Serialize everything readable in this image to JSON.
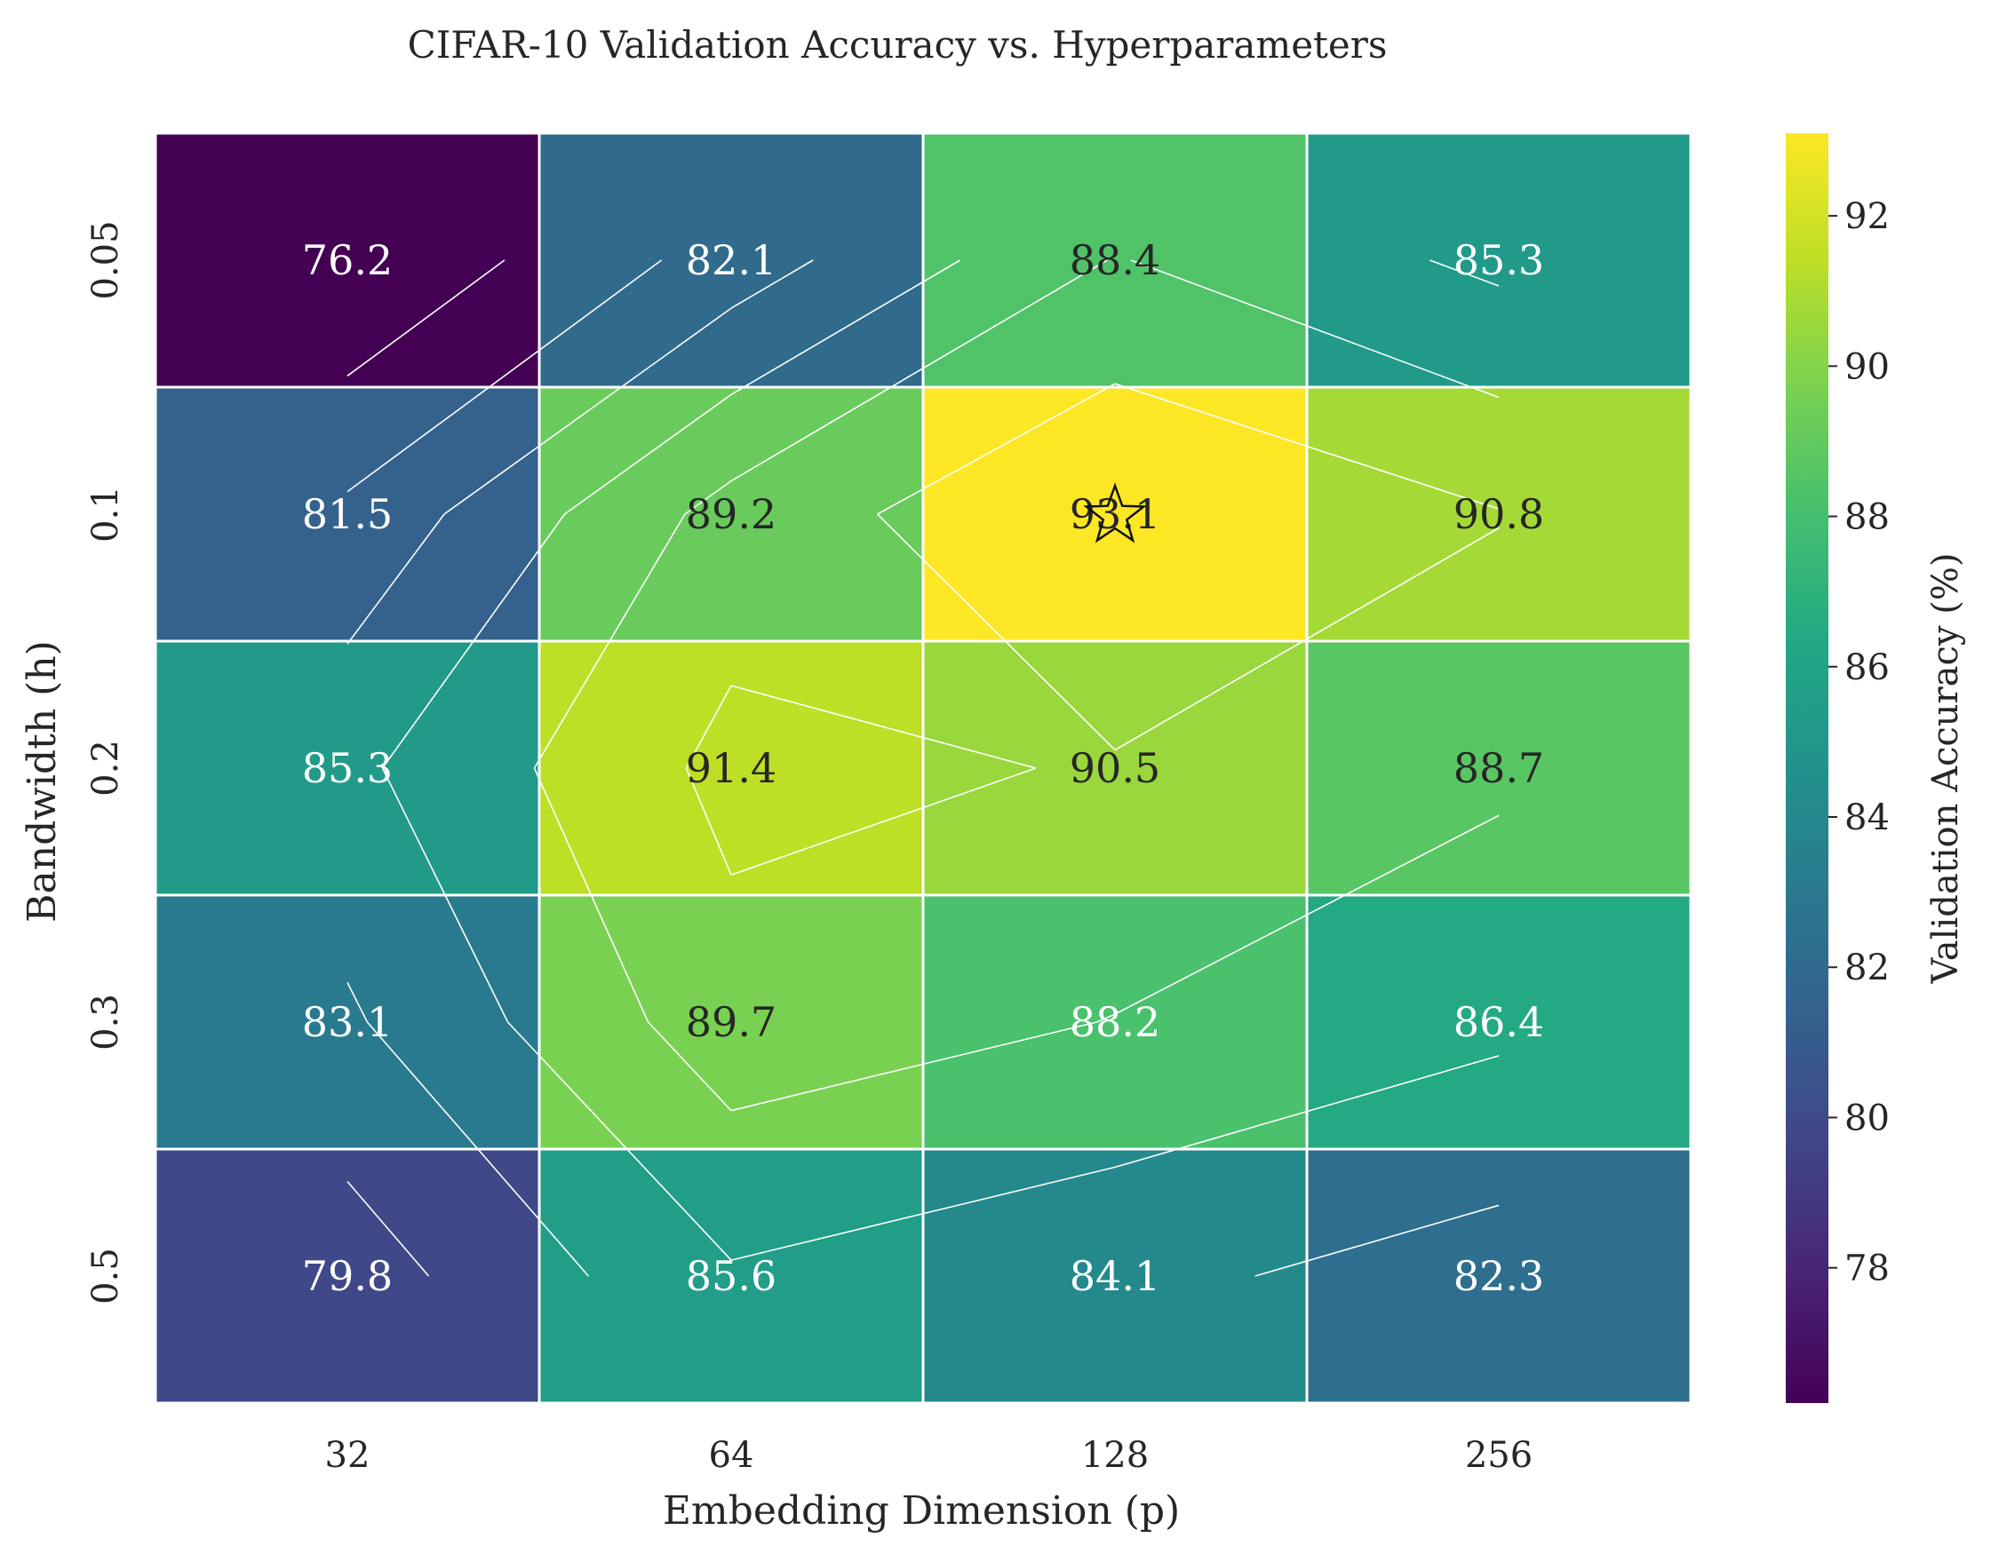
{
  "chart_data": {
    "type": "heatmap",
    "title": "CIFAR-10 Validation Accuracy vs. Hyperparameters",
    "xlabel": "Embedding Dimension (p)",
    "ylabel": "Bandwidth (h)",
    "x_categories": [
      "32",
      "64",
      "128",
      "256"
    ],
    "y_categories": [
      "0.05",
      "0.1",
      "0.2",
      "0.3",
      "0.5"
    ],
    "values": [
      [
        76.2,
        82.1,
        88.4,
        85.3
      ],
      [
        81.5,
        89.2,
        93.1,
        90.8
      ],
      [
        85.3,
        91.4,
        90.5,
        88.7
      ],
      [
        83.1,
        89.7,
        88.2,
        86.4
      ],
      [
        79.8,
        85.6,
        84.1,
        82.3
      ]
    ],
    "value_labels": [
      [
        "76.2",
        "82.1",
        "88.4",
        "85.3"
      ],
      [
        "81.5",
        "89.2",
        "93.1",
        "90.8"
      ],
      [
        "85.3",
        "91.4",
        "90.5",
        "88.7"
      ],
      [
        "83.1",
        "89.7",
        "88.2",
        "86.4"
      ],
      [
        "79.8",
        "85.6",
        "84.1",
        "82.3"
      ]
    ],
    "colormap": "viridis",
    "vmin": 76.2,
    "vmax": 93.1,
    "colorbar": {
      "label": "Validation Accuracy (%)",
      "ticks": [
        78,
        80,
        82,
        84,
        86,
        88,
        90,
        92
      ],
      "tick_labels": [
        "78",
        "80",
        "82",
        "84",
        "86",
        "88",
        "90",
        "92"
      ]
    },
    "best_marker": {
      "row": 1,
      "col": 2,
      "symbol": "star"
    },
    "contour_lines": true,
    "cell_border_color": "#ffffff"
  }
}
